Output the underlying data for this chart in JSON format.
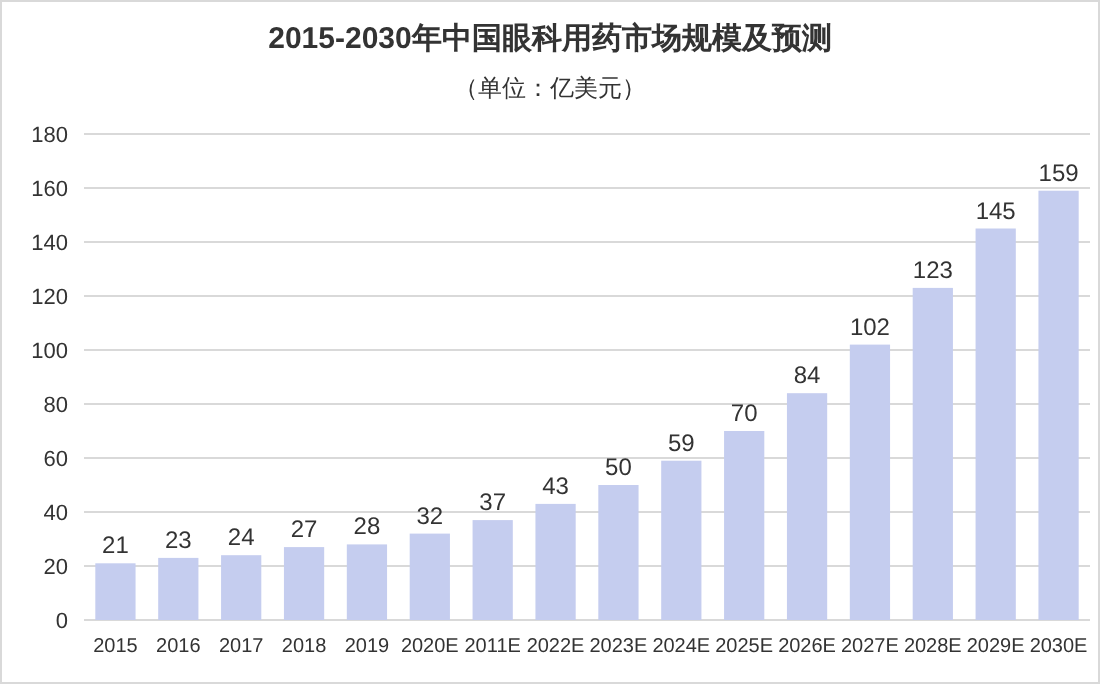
{
  "chart_data": {
    "type": "bar",
    "title": "2015-2030年中国眼科用药市场规模及预测",
    "subtitle": "（单位：亿美元）",
    "categories": [
      "2015",
      "2016",
      "2017",
      "2018",
      "2019",
      "2020E",
      "2011E",
      "2022E",
      "2023E",
      "2024E",
      "2025E",
      "2026E",
      "2027E",
      "2028E",
      "2029E",
      "2030E"
    ],
    "values": [
      21,
      23,
      24,
      27,
      28,
      32,
      37,
      43,
      50,
      59,
      70,
      84,
      102,
      123,
      145,
      159
    ],
    "color": "#c5cdef",
    "ylim": [
      0,
      180
    ],
    "yticks": [
      0,
      20,
      40,
      60,
      80,
      100,
      120,
      140,
      160,
      180
    ],
    "grid": "y",
    "data_labels": true
  }
}
